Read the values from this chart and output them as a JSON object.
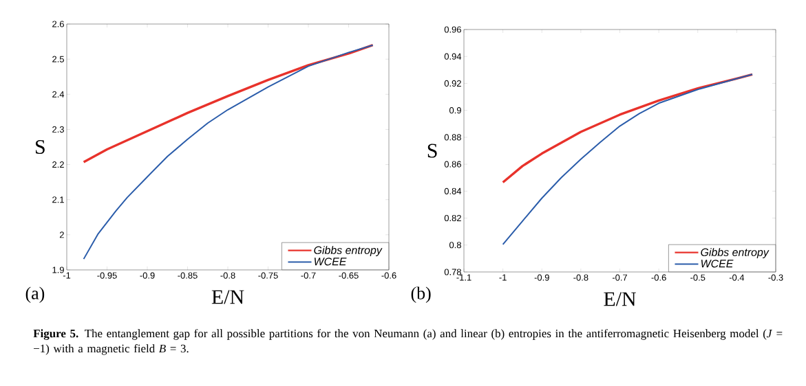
{
  "chart_data": [
    {
      "type": "line",
      "xlabel": "E/N",
      "ylabel": "S",
      "legend": "bottom right",
      "line_style": "solid",
      "xlim": [
        -1,
        -0.6
      ],
      "ylim": [
        1.9,
        2.6
      ],
      "xticks": [
        -1,
        -0.95,
        -0.9,
        -0.85,
        -0.8,
        -0.75,
        -0.7,
        -0.65,
        -0.6
      ],
      "yticks": [
        1.9,
        2,
        2.1,
        2.2,
        2.3,
        2.4,
        2.5,
        2.6
      ],
      "annotations": [
        "(a)"
      ],
      "series": [
        {
          "name": "Gibbs entropy",
          "color": "#e8322b",
          "x": [
            -0.979,
            -0.95,
            -0.9,
            -0.85,
            -0.8,
            -0.75,
            -0.7,
            -0.65,
            -0.62
          ],
          "values": [
            2.207,
            2.243,
            2.295,
            2.347,
            2.395,
            2.441,
            2.483,
            2.516,
            2.54
          ]
        },
        {
          "name": "WCEE",
          "color": "#2a5caa",
          "x": [
            -0.979,
            -0.961,
            -0.939,
            -0.925,
            -0.9,
            -0.875,
            -0.85,
            -0.825,
            -0.8,
            -0.75,
            -0.7,
            -0.65,
            -0.62
          ],
          "values": [
            1.931,
            2.003,
            2.068,
            2.106,
            2.165,
            2.223,
            2.272,
            2.318,
            2.356,
            2.421,
            2.48,
            2.519,
            2.54
          ]
        }
      ]
    },
    {
      "type": "line",
      "xlabel": "E/N",
      "ylabel": "S",
      "legend": "bottom right",
      "line_style": "solid",
      "xlim": [
        -1.1,
        -0.3
      ],
      "ylim": [
        0.78,
        0.96
      ],
      "xticks": [
        -1.1,
        -1,
        -0.9,
        -0.8,
        -0.7,
        -0.6,
        -0.5,
        -0.4,
        -0.3
      ],
      "yticks": [
        0.78,
        0.8,
        0.82,
        0.84,
        0.86,
        0.88,
        0.9,
        0.92,
        0.94,
        0.96
      ],
      "annotations": [
        "(b)",
        "**Figure 5.** The entanglement gap for all possible partitions for the von Neumann (a) and linear (b) entropies in the antiferromagnetic Heisenberg model (*J* = −1) with a magnetic field *B* = 3."
      ],
      "series": [
        {
          "name": "Gibbs entropy",
          "color": "#e8322b",
          "x": [
            -1,
            -0.95,
            -0.9,
            -0.8,
            -0.7,
            -0.6,
            -0.5,
            -0.4,
            -0.36
          ],
          "values": [
            0.8465,
            0.8586,
            0.8679,
            0.884,
            0.8968,
            0.9073,
            0.9163,
            0.9236,
            0.9267
          ]
        },
        {
          "name": "WCEE",
          "color": "#2a5caa",
          "x": [
            -1,
            -0.95,
            -0.9,
            -0.85,
            -0.8,
            -0.75,
            -0.7,
            -0.65,
            -0.6,
            -0.5,
            -0.4,
            -0.36
          ],
          "values": [
            0.8004,
            0.8177,
            0.8348,
            0.8501,
            0.8637,
            0.8764,
            0.8883,
            0.8976,
            0.9053,
            0.9155,
            0.9235,
            0.9267
          ]
        }
      ]
    }
  ]
}
